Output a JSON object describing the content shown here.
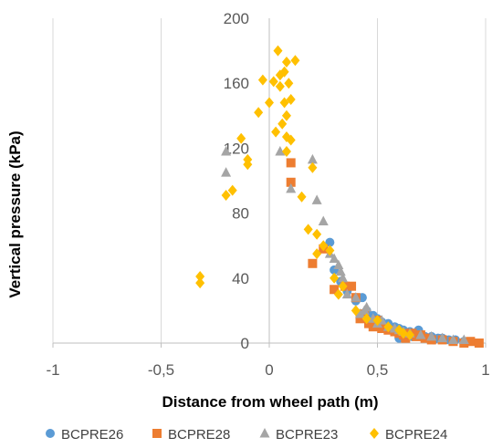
{
  "chart_data": {
    "type": "scatter",
    "xlabel": "Distance from wheel path (m)",
    "ylabel": "Vertical pressure (kPa)",
    "xlim": [
      -1,
      1
    ],
    "ylim": [
      0,
      200
    ],
    "x_ticks": [
      -1,
      -0.5,
      0,
      0.5,
      1
    ],
    "x_tick_labels": [
      "-1",
      "-0,5",
      "0",
      "0,5",
      "1"
    ],
    "y_ticks": [
      0,
      40,
      80,
      120,
      160,
      200
    ],
    "y_tick_labels": [
      "0",
      "40",
      "80",
      "120",
      "160",
      "200"
    ],
    "grid": "vertical gridlines",
    "legend_position": "bottom",
    "series": [
      {
        "name": "BCPRE26",
        "color": "#5B9BD5",
        "marker": "circle",
        "points": [
          [
            0.28,
            62
          ],
          [
            0.3,
            45
          ],
          [
            0.33,
            38
          ],
          [
            0.36,
            32
          ],
          [
            0.4,
            26
          ],
          [
            0.43,
            28
          ],
          [
            0.45,
            20
          ],
          [
            0.48,
            17
          ],
          [
            0.5,
            15
          ],
          [
            0.52,
            13
          ],
          [
            0.55,
            12
          ],
          [
            0.58,
            10
          ],
          [
            0.6,
            9
          ],
          [
            0.62,
            8
          ],
          [
            0.65,
            7
          ],
          [
            0.68,
            6
          ],
          [
            0.7,
            5
          ],
          [
            0.72,
            4
          ],
          [
            0.75,
            4
          ],
          [
            0.78,
            3
          ],
          [
            0.8,
            3
          ],
          [
            0.83,
            2
          ],
          [
            0.86,
            2
          ],
          [
            0.9,
            1
          ],
          [
            0.6,
            3
          ],
          [
            0.63,
            5
          ],
          [
            0.66,
            4
          ],
          [
            0.69,
            8
          ],
          [
            0.73,
            3
          ],
          [
            0.76,
            2
          ]
        ]
      },
      {
        "name": "BCPRE28",
        "color": "#ED7D31",
        "marker": "square",
        "points": [
          [
            0.1,
            111
          ],
          [
            0.1,
            99
          ],
          [
            0.2,
            49
          ],
          [
            0.25,
            58
          ],
          [
            0.3,
            33
          ],
          [
            0.35,
            35
          ],
          [
            0.38,
            35
          ],
          [
            0.4,
            28
          ],
          [
            0.42,
            15
          ],
          [
            0.44,
            18
          ],
          [
            0.46,
            12
          ],
          [
            0.48,
            10
          ],
          [
            0.5,
            14
          ],
          [
            0.52,
            9
          ],
          [
            0.55,
            8
          ],
          [
            0.58,
            7
          ],
          [
            0.6,
            6
          ],
          [
            0.62,
            5
          ],
          [
            0.65,
            6
          ],
          [
            0.68,
            4
          ],
          [
            0.7,
            5
          ],
          [
            0.72,
            3
          ],
          [
            0.75,
            2
          ],
          [
            0.8,
            2
          ],
          [
            0.85,
            1
          ],
          [
            0.9,
            0
          ],
          [
            0.93,
            1
          ],
          [
            0.97,
            0
          ],
          [
            0.63,
            3
          ],
          [
            0.66,
            6
          ]
        ]
      },
      {
        "name": "BCPRE23",
        "color": "#A5A5A5",
        "marker": "triangle",
        "points": [
          [
            -0.2,
            118
          ],
          [
            -0.2,
            105
          ],
          [
            0.05,
            118
          ],
          [
            0.1,
            95
          ],
          [
            0.2,
            113
          ],
          [
            0.22,
            88
          ],
          [
            0.25,
            75
          ],
          [
            0.28,
            55
          ],
          [
            0.3,
            52
          ],
          [
            0.32,
            48
          ],
          [
            0.34,
            40
          ],
          [
            0.36,
            30
          ],
          [
            0.4,
            28
          ],
          [
            0.42,
            18
          ],
          [
            0.45,
            22
          ],
          [
            0.48,
            15
          ],
          [
            0.5,
            12
          ],
          [
            0.52,
            14
          ],
          [
            0.55,
            10
          ],
          [
            0.58,
            9
          ],
          [
            0.6,
            8
          ],
          [
            0.62,
            7
          ],
          [
            0.65,
            6
          ],
          [
            0.7,
            5
          ],
          [
            0.75,
            4
          ],
          [
            0.8,
            3
          ],
          [
            0.85,
            2
          ],
          [
            0.9,
            2
          ],
          [
            0.33,
            44
          ],
          [
            0.44,
            20
          ]
        ]
      },
      {
        "name": "BCPRE24",
        "color": "#FFC000",
        "marker": "diamond",
        "points": [
          [
            -0.32,
            41
          ],
          [
            -0.32,
            37
          ],
          [
            -0.2,
            91
          ],
          [
            -0.17,
            94
          ],
          [
            -0.13,
            126
          ],
          [
            -0.1,
            113
          ],
          [
            -0.1,
            110
          ],
          [
            -0.05,
            142
          ],
          [
            -0.03,
            162
          ],
          [
            0.0,
            148
          ],
          [
            0.02,
            161
          ],
          [
            0.03,
            130
          ],
          [
            0.04,
            180
          ],
          [
            0.05,
            165
          ],
          [
            0.05,
            158
          ],
          [
            0.06,
            135
          ],
          [
            0.07,
            167
          ],
          [
            0.07,
            148
          ],
          [
            0.08,
            173
          ],
          [
            0.08,
            140
          ],
          [
            0.08,
            127
          ],
          [
            0.08,
            118
          ],
          [
            0.09,
            160
          ],
          [
            0.1,
            150
          ],
          [
            0.1,
            125
          ],
          [
            0.12,
            174
          ],
          [
            0.15,
            90
          ],
          [
            0.18,
            70
          ],
          [
            0.2,
            108
          ],
          [
            0.22,
            67
          ],
          [
            0.22,
            55
          ],
          [
            0.25,
            60
          ],
          [
            0.28,
            57
          ],
          [
            0.3,
            40
          ],
          [
            0.32,
            30
          ],
          [
            0.34,
            35
          ],
          [
            0.4,
            20
          ],
          [
            0.45,
            15
          ],
          [
            0.5,
            14
          ],
          [
            0.55,
            10
          ],
          [
            0.6,
            8
          ],
          [
            0.62,
            6
          ],
          [
            0.65,
            5
          ]
        ]
      }
    ]
  }
}
